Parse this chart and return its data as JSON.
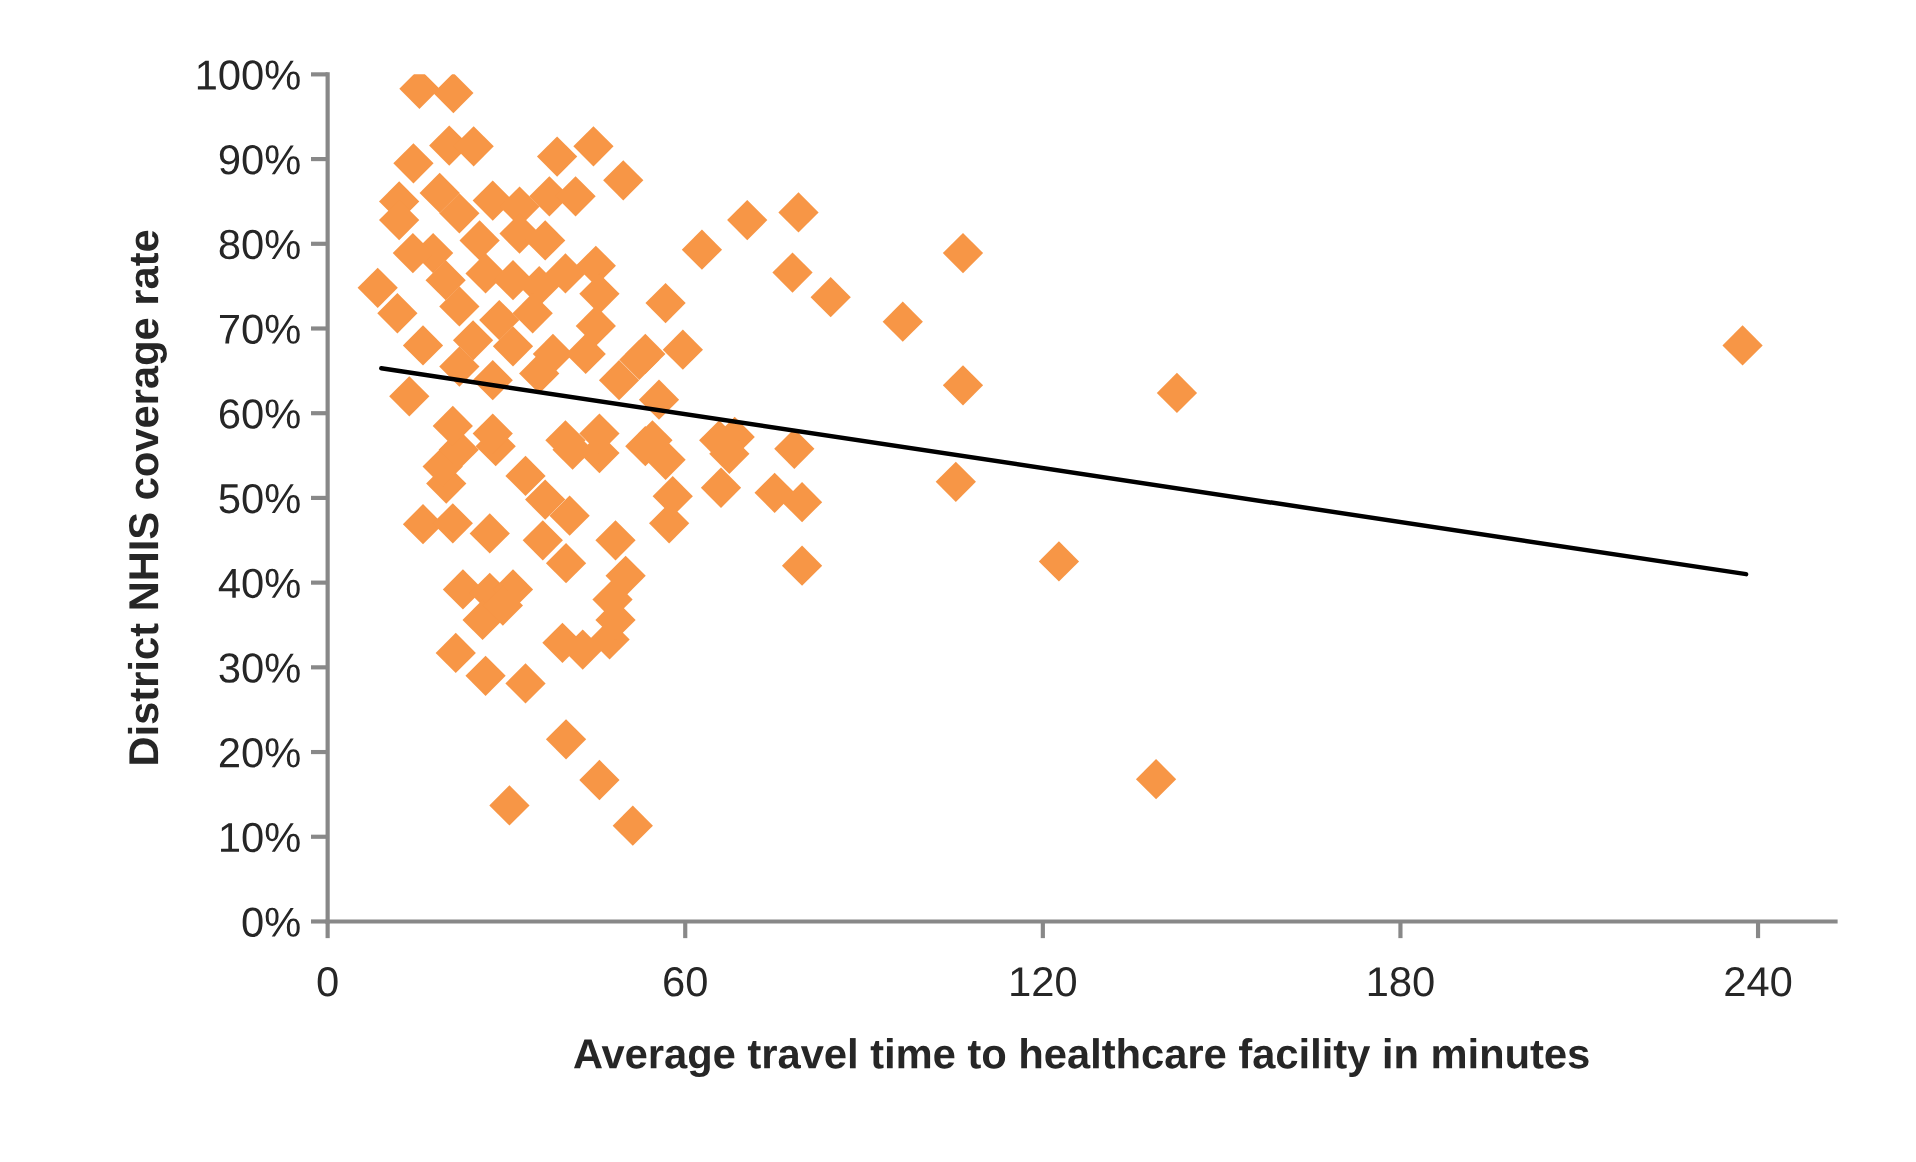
{
  "chart_data": {
    "type": "scatter",
    "xlabel": "Average travel time to healthcare facility in minutes",
    "ylabel": "District NHIS coverage rate",
    "xlim": [
      0,
      253
    ],
    "xticks": [
      0,
      60,
      120,
      180,
      240
    ],
    "ylim": [
      0,
      100
    ],
    "yticks": [
      {
        "value": 0,
        "label": "0%"
      },
      {
        "value": 10,
        "label": "10%"
      },
      {
        "value": 20,
        "label": "20%"
      },
      {
        "value": 30,
        "label": "30%"
      },
      {
        "value": 40,
        "label": "40%"
      },
      {
        "value": 50,
        "label": "50%"
      },
      {
        "value": 60,
        "label": "60%"
      },
      {
        "value": 70,
        "label": "70%"
      },
      {
        "value": 80,
        "label": "80%"
      },
      {
        "value": 90,
        "label": "90%"
      },
      {
        "value": 100,
        "label": "100%"
      }
    ],
    "grid": false,
    "series": [
      {
        "marker": "diamond",
        "color": "#f79646",
        "x": [
          15.4,
          21.1,
          20.4,
          24.5,
          38.5,
          44.6,
          49.6,
          14.4,
          12,
          8.4,
          11.7,
          16,
          13.7,
          45,
          56.7,
          45,
          59.6,
          53.3,
          70.4,
          79,
          62.8,
          106.6,
          78,
          84.4,
          96.5,
          106.6,
          142.5,
          237.4,
          68.3,
          67.4,
          78.3,
          66,
          75,
          79.6,
          105.4,
          79.6,
          122.7,
          139,
          16,
          21,
          27.2,
          19.9,
          19.3,
          22,
          28.2,
          33.2,
          36.5,
          40.6,
          36.1,
          40,
          48.3,
          50,
          57.3,
          57.9,
          56.7,
          41.1,
          45.6,
          53.3,
          22.7,
          27.2,
          31.1,
          26,
          29.4,
          21.5,
          26.5,
          33.2,
          39.4,
          42.8,
          47.3,
          48.3,
          47.8,
          40,
          45.6,
          30.5,
          51.2,
          17.7,
          14.3,
          22.1,
          27.7,
          32.2,
          37.2,
          41.6,
          25.5,
          32.2,
          36.5,
          19.8,
          26.5,
          31.1,
          35.5,
          39.9,
          22.1,
          28.8,
          34.4,
          45.6,
          24.4,
          31.1,
          37.8,
          43.3,
          52.3,
          22.1,
          27.7,
          35.5,
          48.9,
          55.6,
          21,
          27.7,
          39.9,
          45.6,
          54.5,
          65.7,
          12,
          18.8
        ],
        "values": [
          98.3,
          97.8,
          91.6,
          91.5,
          90.3,
          91.5,
          87.5,
          89.5,
          85,
          74.8,
          71.8,
          68,
          62,
          77.4,
          73,
          70.3,
          67.5,
          67,
          82.8,
          83.7,
          79.3,
          78.9,
          76.6,
          73.7,
          70.8,
          63.3,
          62.4,
          68,
          57.2,
          55.2,
          55.8,
          51.2,
          50.6,
          49.5,
          51.9,
          42,
          42.5,
          16.8,
          46.9,
          47,
          45.8,
          51.7,
          53.7,
          55.7,
          56.1,
          52.6,
          49.8,
          47.9,
          45,
          42.3,
          45,
          40.8,
          47,
          50.2,
          54.5,
          55.7,
          55.3,
          56.1,
          39.2,
          38.8,
          39.2,
          35.6,
          37.3,
          31.7,
          29,
          28.1,
          32.9,
          32.1,
          33.3,
          35.6,
          38,
          21.5,
          16.7,
          13.7,
          11.3,
          78.9,
          78.9,
          83.6,
          85.1,
          84.4,
          85.6,
          85.6,
          80.4,
          81.2,
          80.4,
          75.7,
          76.5,
          75.7,
          75,
          76.5,
          72.6,
          71,
          71.8,
          74.1,
          68.6,
          67.9,
          67,
          67,
          66.3,
          65.5,
          63.9,
          64.7,
          63.9,
          61.6,
          58.5,
          57.6,
          56.8,
          57.6,
          56.8,
          56.8,
          82.8,
          86
        ]
      },
      {
        "type": "line",
        "marker": "none",
        "color": "#000000",
        "x": [
          9,
          238
        ],
        "values": [
          65.3,
          41
        ]
      }
    ]
  }
}
